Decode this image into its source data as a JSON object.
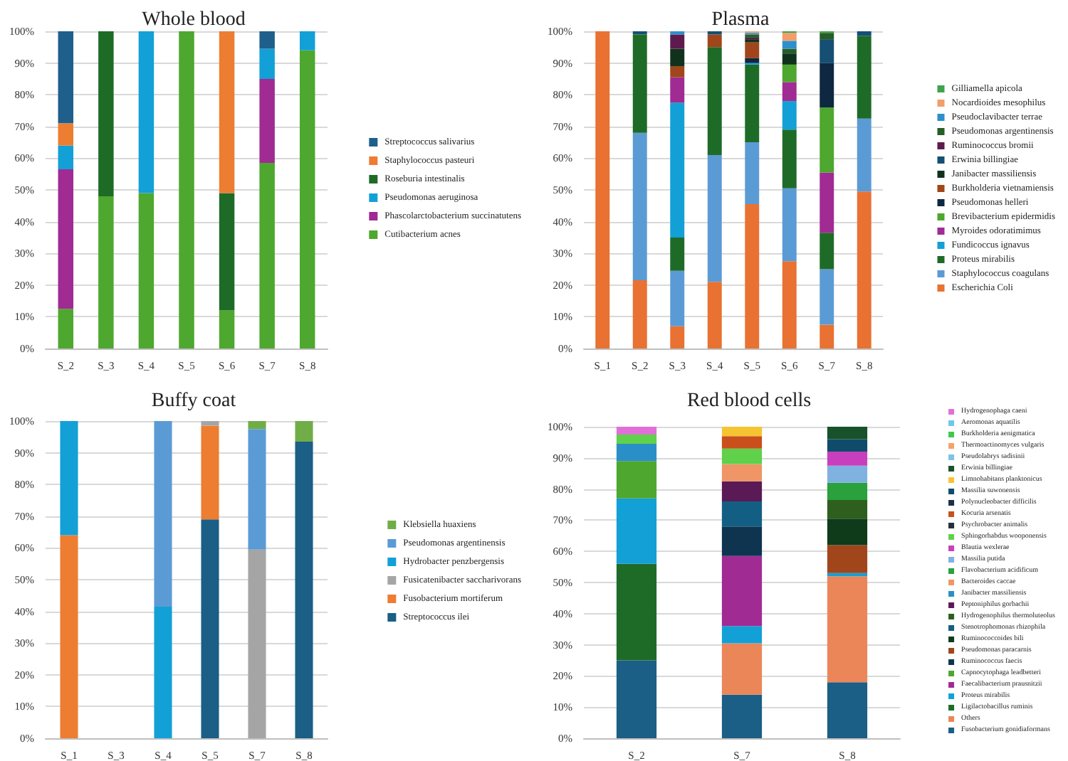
{
  "chart_data": [
    {
      "type": "bar",
      "title": "Whole blood",
      "stacked": true,
      "categories": [
        "S_2",
        "S_3",
        "S_4",
        "S_5",
        "S_6",
        "S_7",
        "S_8"
      ],
      "ylim": [
        0,
        100
      ],
      "yticks": [
        {
          "value": 0,
          "label": "0%"
        },
        {
          "value": 10,
          "label": "10%"
        },
        {
          "value": 20,
          "label": "20%"
        },
        {
          "value": 30,
          "label": "30%"
        },
        {
          "value": 40,
          "label": "40%"
        },
        {
          "value": 50,
          "label": "50%"
        },
        {
          "value": 60,
          "label": "60%"
        },
        {
          "value": 70,
          "label": "70%"
        },
        {
          "value": 80,
          "label": "80%"
        },
        {
          "value": 90,
          "label": "90%"
        },
        {
          "value": 100,
          "label": "100%"
        }
      ],
      "grid": "y",
      "legend": "right",
      "series": [
        {
          "name": "Cutibacterium acnes",
          "color": "#4ea72e",
          "values": [
            12.5,
            48,
            49,
            100,
            12,
            58.5,
            94
          ]
        },
        {
          "name": "Phascolarctobacterium succinatutens",
          "color": "#a02b93",
          "values": [
            44,
            null,
            null,
            null,
            null,
            26.5,
            null
          ]
        },
        {
          "name": "Pseudomonas aeruginosa",
          "color": "#12a0d7",
          "values": [
            7.5,
            null,
            51,
            null,
            null,
            9.5,
            6
          ]
        },
        {
          "name": "Roseburia intestinalis",
          "color": "#1e6b28",
          "values": [
            null,
            52,
            null,
            null,
            37,
            null,
            null
          ]
        },
        {
          "name": "Staphylococcus pasteuri",
          "color": "#ed7d31",
          "values": [
            7,
            null,
            null,
            null,
            51,
            null,
            null
          ]
        },
        {
          "name": "Streptococcus salivarius",
          "color": "#1f5f8b",
          "values": [
            29,
            null,
            null,
            null,
            null,
            5.5,
            null
          ]
        }
      ]
    },
    {
      "type": "bar",
      "title": "Plasma",
      "stacked": true,
      "categories": [
        "S_1",
        "S_2",
        "S_3",
        "S_4",
        "S_5",
        "S_6",
        "S_7",
        "S_8"
      ],
      "ylim": [
        0,
        100
      ],
      "yticks": [
        {
          "value": 0,
          "label": "0%"
        },
        {
          "value": 10,
          "label": "10%"
        },
        {
          "value": 20,
          "label": "20%"
        },
        {
          "value": 30,
          "label": "30%"
        },
        {
          "value": 40,
          "label": "40%"
        },
        {
          "value": 50,
          "label": "50%"
        },
        {
          "value": 60,
          "label": "60%"
        },
        {
          "value": 70,
          "label": "70%"
        },
        {
          "value": 80,
          "label": "80%"
        },
        {
          "value": 90,
          "label": "90%"
        },
        {
          "value": 100,
          "label": "100%"
        }
      ],
      "grid": "y",
      "legend": "right",
      "series": [
        {
          "name": "Escherichia Coli",
          "color": "#e97132",
          "values": [
            100,
            21.5,
            7,
            21,
            45.5,
            27.5,
            7.5,
            49.5
          ]
        },
        {
          "name": "Staphylococcus coagulans",
          "color": "#5b9bd5",
          "values": [
            null,
            46.5,
            17.5,
            40,
            19.5,
            23,
            17.5,
            23
          ]
        },
        {
          "name": "Proteus mirabilis",
          "color": "#1e6b28",
          "values": [
            null,
            31,
            10.5,
            34,
            24.5,
            18.5,
            11.5,
            26
          ]
        },
        {
          "name": "Fundicoccus ignavus",
          "color": "#12a0d7",
          "values": [
            null,
            null,
            42.5,
            null,
            0.5,
            9,
            null,
            null
          ]
        },
        {
          "name": "Myroides odoratimimus",
          "color": "#a02b93",
          "values": [
            null,
            null,
            8,
            null,
            null,
            6,
            19,
            null
          ]
        },
        {
          "name": "Brevibacterium epidermidis",
          "color": "#4ea72e",
          "values": [
            null,
            null,
            null,
            null,
            null,
            5.5,
            20.5,
            null
          ]
        },
        {
          "name": "Pseudomonas helleri",
          "color": "#0e2841",
          "values": [
            null,
            null,
            null,
            null,
            1.5,
            null,
            14,
            null
          ]
        },
        {
          "name": "Burkholderia vietnamiensis",
          "color": "#a0461a",
          "values": [
            null,
            null,
            3.5,
            4,
            5,
            null,
            null,
            null
          ]
        },
        {
          "name": "Janibacter massiliensis",
          "color": "#10321c",
          "values": [
            null,
            null,
            5.5,
            null,
            1,
            3.5,
            null,
            null
          ]
        },
        {
          "name": "Erwinia billingiae",
          "color": "#154f73",
          "values": [
            null,
            1,
            null,
            1,
            null,
            null,
            7.5,
            1.5
          ]
        },
        {
          "name": "Ruminococcus bromii",
          "color": "#5e1a4f",
          "values": [
            null,
            null,
            4.5,
            null,
            0.5,
            null,
            null,
            null
          ]
        },
        {
          "name": "Pseudomonas argentinensis",
          "color": "#275e26",
          "values": [
            null,
            null,
            null,
            null,
            1,
            1.5,
            2,
            null
          ]
        },
        {
          "name": "Pseudoclavibacter terrae",
          "color": "#2d8fcb",
          "values": [
            null,
            null,
            1,
            null,
            0.5,
            2.5,
            null,
            null
          ]
        },
        {
          "name": "Nocardioides mesophilus",
          "color": "#f29d6b",
          "values": [
            null,
            null,
            null,
            null,
            0.5,
            2.5,
            null,
            null
          ]
        },
        {
          "name": "Gilliamella apicola",
          "color": "#3fa34d",
          "values": [
            null,
            null,
            null,
            null,
            null,
            0.5,
            0.5,
            null
          ]
        }
      ]
    },
    {
      "type": "bar",
      "title": "Buffy coat",
      "stacked": true,
      "categories": [
        "S_1",
        "S_3",
        "S_4",
        "S_5",
        "S_7",
        "S_8"
      ],
      "ylim": [
        0,
        100
      ],
      "yticks": [
        {
          "value": 0,
          "label": "0%"
        },
        {
          "value": 10,
          "label": "10%"
        },
        {
          "value": 20,
          "label": "20%"
        },
        {
          "value": 30,
          "label": "30%"
        },
        {
          "value": 40,
          "label": "40%"
        },
        {
          "value": 50,
          "label": "50%"
        },
        {
          "value": 60,
          "label": "60%"
        },
        {
          "value": 70,
          "label": "70%"
        },
        {
          "value": 80,
          "label": "80%"
        },
        {
          "value": 90,
          "label": "90%"
        },
        {
          "value": 100,
          "label": "100%"
        }
      ],
      "grid": "y",
      "legend": "right",
      "series": [
        {
          "name": "Streptococcus ilei",
          "color": "#1b5e86",
          "values": [
            null,
            null,
            null,
            69,
            null,
            93.5
          ]
        },
        {
          "name": "Fusobacterium mortiferum",
          "color": "#ed7d31",
          "values": [
            64,
            null,
            null,
            29.5,
            null,
            null
          ]
        },
        {
          "name": "Fusicatenibacter saccharivorans",
          "color": "#a5a5a5",
          "values": [
            null,
            null,
            null,
            1.5,
            59.5,
            null
          ]
        },
        {
          "name": "Hydrobacter penzbergensis",
          "color": "#12a0d7",
          "values": [
            36,
            null,
            41.5,
            null,
            null,
            null
          ]
        },
        {
          "name": "Pseudomonas argentinensis",
          "color": "#5b9bd5",
          "values": [
            null,
            null,
            58.5,
            null,
            38,
            null
          ]
        },
        {
          "name": "Klebsiella huaxiens",
          "color": "#70ad47",
          "values": [
            null,
            null,
            null,
            null,
            2.5,
            6.5
          ]
        }
      ]
    },
    {
      "type": "bar",
      "title": "Red blood cells",
      "stacked": true,
      "categories": [
        "S_2",
        "S_7",
        "S_8"
      ],
      "ylim": [
        0,
        100
      ],
      "yticks": [
        {
          "value": 0,
          "label": "0%"
        },
        {
          "value": 10,
          "label": "10%"
        },
        {
          "value": 20,
          "label": "20%"
        },
        {
          "value": 30,
          "label": "30%"
        },
        {
          "value": 40,
          "label": "40%"
        },
        {
          "value": 50,
          "label": "50%"
        },
        {
          "value": 60,
          "label": "60%"
        },
        {
          "value": 70,
          "label": "70%"
        },
        {
          "value": 80,
          "label": "80%"
        },
        {
          "value": 90,
          "label": "90%"
        },
        {
          "value": 100,
          "label": "100%"
        }
      ],
      "grid": "y",
      "legend": "right",
      "series": [
        {
          "name": "Fusobacterium gonidiaformans",
          "color": "#1b5e86",
          "values": [
            25,
            14,
            18
          ]
        },
        {
          "name": "Others",
          "color": "#ea8658",
          "values": [
            null,
            16.5,
            34
          ]
        },
        {
          "name": "Ligilactobacillus ruminis",
          "color": "#1e6b28",
          "values": [
            31,
            null,
            null
          ]
        },
        {
          "name": "Proteus mirabilis",
          "color": "#12a0d7",
          "values": [
            21,
            5.5,
            1
          ]
        },
        {
          "name": "Faecalibacterium prausnitzii",
          "color": "#a02b93",
          "values": [
            null,
            22.5,
            null
          ]
        },
        {
          "name": "Capnocytophaga leadbetteri",
          "color": "#4ea72e",
          "values": [
            12,
            null,
            null
          ]
        },
        {
          "name": "Ruminococcus faecis",
          "color": "#0e3450",
          "values": [
            null,
            9.5,
            null
          ]
        },
        {
          "name": "Pseudomonas paracarnis",
          "color": "#a0461a",
          "values": [
            null,
            null,
            9
          ]
        },
        {
          "name": "Ruminococcoides bili",
          "color": "#0f3b1a",
          "values": [
            null,
            null,
            8.5
          ]
        },
        {
          "name": "Stenotrophomonas rhizophila",
          "color": "#135f84",
          "values": [
            null,
            8,
            null
          ]
        },
        {
          "name": "Hydrogenophilus thermoluteolus",
          "color": "#2e5f1e",
          "values": [
            null,
            null,
            6
          ]
        },
        {
          "name": "Peptoniphilus gorbachii",
          "color": "#5a1a55",
          "values": [
            null,
            6.5,
            null
          ]
        },
        {
          "name": "Janibacter massiliensis",
          "color": "#2a8fc7",
          "values": [
            5.5,
            null,
            null
          ]
        },
        {
          "name": "Bacteroides caccae",
          "color": "#f09565",
          "values": [
            null,
            5.5,
            null
          ]
        },
        {
          "name": "Flavobacterium acidificum",
          "color": "#2aa13c",
          "values": [
            null,
            null,
            5.5
          ]
        },
        {
          "name": "Massilia putida",
          "color": "#7fb2e0",
          "values": [
            null,
            null,
            5.5
          ]
        },
        {
          "name": "Blautia wexlerae",
          "color": "#c83fbe",
          "values": [
            null,
            null,
            4.5
          ]
        },
        {
          "name": "Sphingorhabdus wooponensis",
          "color": "#5fd14a",
          "values": [
            3,
            5,
            null
          ]
        },
        {
          "name": "Psychrobacter animalis",
          "color": "#24303a",
          "values": [
            null,
            null,
            null
          ]
        },
        {
          "name": "Kocuria arsenatis",
          "color": "#c9501c",
          "values": [
            null,
            4,
            null
          ]
        },
        {
          "name": "Polynucleobacter difficilis",
          "color": "#1f2f45",
          "values": [
            null,
            null,
            null
          ]
        },
        {
          "name": "Massilia suwonensis",
          "color": "#0f4c6b",
          "values": [
            null,
            null,
            4
          ]
        },
        {
          "name": "Limnohabitans planktonicus",
          "color": "#f5c431",
          "values": [
            null,
            3,
            null
          ]
        },
        {
          "name": "Erwinia billingiae",
          "color": "#17522a",
          "values": [
            null,
            null,
            4
          ]
        },
        {
          "name": "Pseudolabrys sadisinii",
          "color": "#7cc2ea",
          "values": [
            null,
            null,
            null
          ]
        },
        {
          "name": "Thermoactinomyces vulgaris",
          "color": "#f3a36b",
          "values": [
            null,
            null,
            null
          ]
        },
        {
          "name": "Burkholderia aenigmatica",
          "color": "#3ec850",
          "values": [
            null,
            null,
            null
          ]
        },
        {
          "name": "Aeromonas aquatilis",
          "color": "#6ec6ef",
          "values": [
            null,
            null,
            null
          ]
        },
        {
          "name": "Hydrogenophaga caeni",
          "color": "#e070d8",
          "values": [
            2.5,
            null,
            null
          ]
        }
      ]
    }
  ]
}
